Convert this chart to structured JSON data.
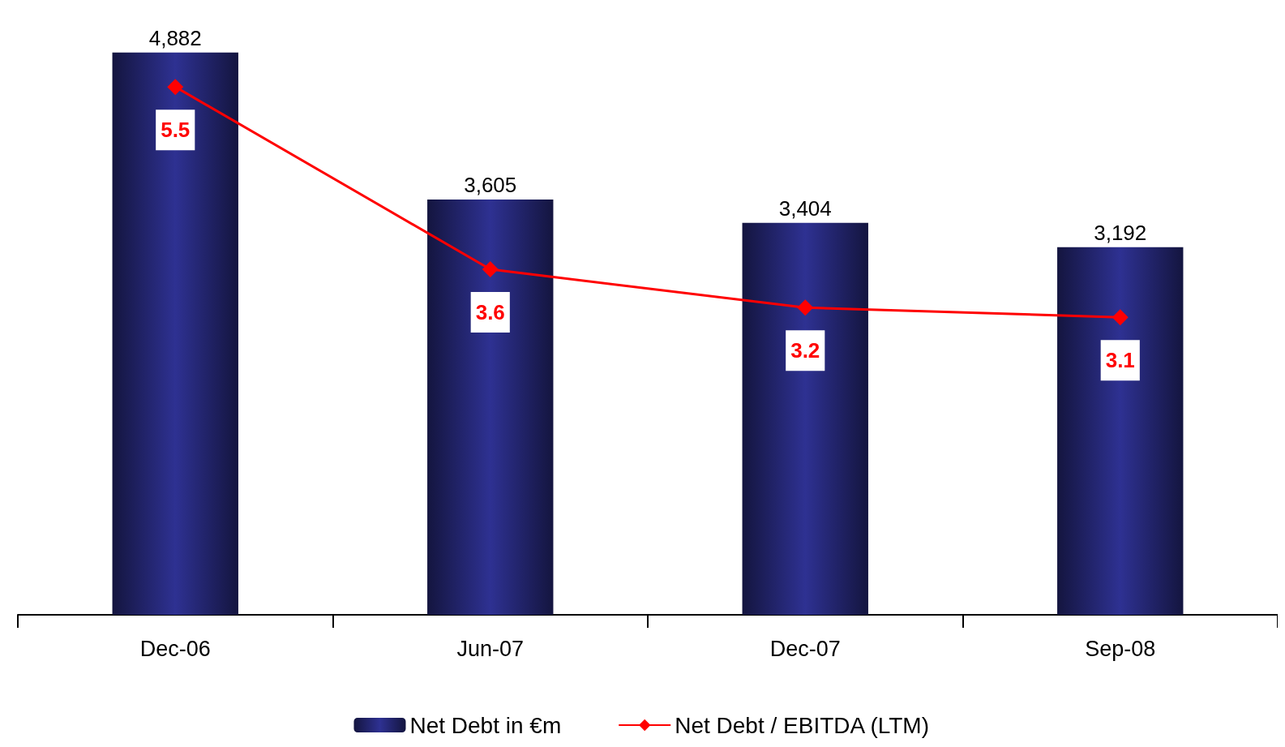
{
  "chart_data": {
    "type": "bar",
    "categories": [
      "Dec-06",
      "Jun-07",
      "Dec-07",
      "Sep-08"
    ],
    "series": [
      {
        "name": "Net Debt in €m",
        "color": "#2e3192",
        "values": [
          4882,
          3605,
          3404,
          3192
        ],
        "value_labels": [
          "4,882",
          "3,605",
          "3,404",
          "3,192"
        ]
      },
      {
        "name": "Net Debt / EBITDA (LTM)",
        "type": "line",
        "axis": "y2",
        "color": "#ff0000",
        "values": [
          5.5,
          3.6,
          3.2,
          3.1
        ]
      }
    ],
    "data_labels": true,
    "legend": "bottom",
    "grid": false,
    "marker": "diamond",
    "line_style": "solid",
    "tick_labels": "x"
  }
}
